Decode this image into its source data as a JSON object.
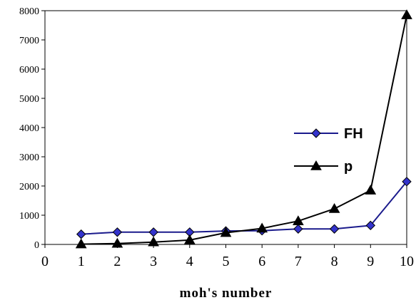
{
  "chart_data": {
    "type": "line",
    "xlabel": "moh's number",
    "ylabel": "",
    "xlim": [
      0,
      10
    ],
    "ylim": [
      0,
      8000
    ],
    "x_ticks": [
      "0",
      "1",
      "2",
      "3",
      "4",
      "5",
      "6",
      "7",
      "8",
      "9",
      "10"
    ],
    "y_ticks": [
      "0",
      "1000",
      "2000",
      "3000",
      "4000",
      "5000",
      "6000",
      "7000",
      "8000"
    ],
    "grid": false,
    "legend_position": "right",
    "series": [
      {
        "name": "FH",
        "marker": "diamond",
        "color": "#1a1a8c",
        "marker_fill": "#3333cc",
        "x": [
          1,
          2,
          3,
          4,
          5,
          6,
          7,
          8,
          9,
          10
        ],
        "values": [
          350,
          420,
          420,
          420,
          460,
          470,
          530,
          530,
          650,
          2150
        ]
      },
      {
        "name": "p",
        "marker": "triangle",
        "color": "#000000",
        "marker_fill": "#000000",
        "x": [
          1,
          2,
          3,
          4,
          5,
          6,
          7,
          8,
          9,
          10
        ],
        "values": [
          10,
          30,
          80,
          150,
          400,
          550,
          800,
          1220,
          1850,
          7850
        ]
      }
    ]
  }
}
